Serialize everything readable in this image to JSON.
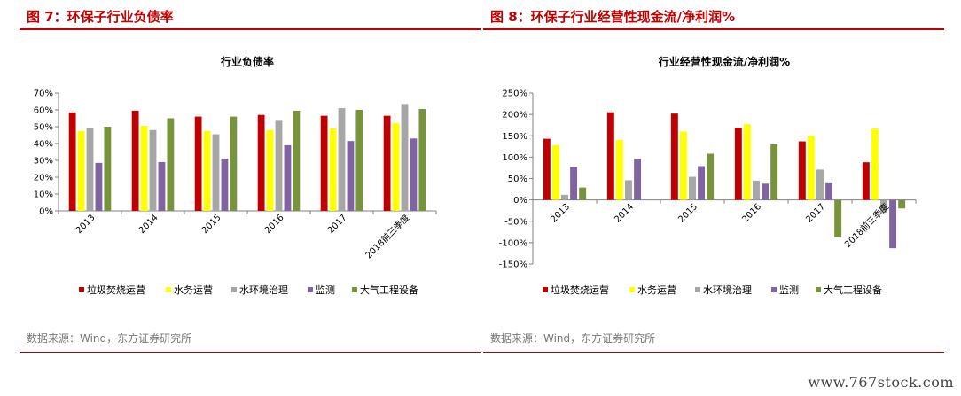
{
  "figures": [
    {
      "title": "图 7：环保子行业负债率",
      "source": "数据来源：Wind，东方证券研究所"
    },
    {
      "title": "图 8：环保子行业经营性现金流/净利润%",
      "source": "数据来源：Wind，东方证券研究所"
    }
  ],
  "watermark": "www.767stock.com",
  "colors": {
    "垃圾焚烧运营": "#c00000",
    "水务运营": "#ffff00",
    "水环境治理": "#a6a6a6",
    "监测": "#8064a2",
    "大气工程设备": "#77933c",
    "title_red": "#c00000"
  },
  "chart_data": [
    {
      "type": "bar",
      "title": "行业负债率",
      "categories": [
        "2013",
        "2014",
        "2015",
        "2016",
        "2017",
        "2018前三季度"
      ],
      "ylim": [
        0,
        70
      ],
      "yticks": [
        0,
        10,
        20,
        30,
        40,
        50,
        60,
        70
      ],
      "ytick_labels": [
        "0%",
        "10%",
        "20%",
        "30%",
        "40%",
        "50%",
        "60%",
        "70%"
      ],
      "grid": false,
      "legend_position": "bottom",
      "series": [
        {
          "name": "垃圾焚烧运营",
          "values": [
            58.5,
            59.5,
            56,
            57,
            56.5,
            56.5
          ]
        },
        {
          "name": "水务运营",
          "values": [
            47.5,
            50.5,
            47.5,
            48,
            49,
            52
          ]
        },
        {
          "name": "水环境治理",
          "values": [
            49.5,
            48,
            45.5,
            53.5,
            61,
            63.5
          ]
        },
        {
          "name": "监测",
          "values": [
            28.5,
            29,
            31,
            39,
            41.5,
            43
          ]
        },
        {
          "name": "大气工程设备",
          "values": [
            50,
            55,
            56,
            59.5,
            60,
            60.5
          ]
        }
      ]
    },
    {
      "type": "bar",
      "title": "行业经营性现金流/净利润%",
      "categories": [
        "2013",
        "2014",
        "2015",
        "2016",
        "2017",
        "2018前三季度"
      ],
      "ylim": [
        -150,
        250
      ],
      "yticks": [
        -150,
        -100,
        -50,
        0,
        50,
        100,
        150,
        200,
        250
      ],
      "ytick_labels": [
        "-150%",
        "-100%",
        "-50%",
        "0%",
        "50%",
        "100%",
        "150%",
        "200%",
        "250%"
      ],
      "grid": false,
      "legend_position": "bottom",
      "series": [
        {
          "name": "垃圾焚烧运营",
          "values": [
            143,
            205,
            202,
            169,
            137,
            88
          ]
        },
        {
          "name": "水务运营",
          "values": [
            128,
            140,
            160,
            177,
            150,
            167
          ]
        },
        {
          "name": "水环境治理",
          "values": [
            12,
            46,
            54,
            45,
            71,
            -30
          ]
        },
        {
          "name": "监测",
          "values": [
            77,
            96,
            79,
            38,
            39,
            -113
          ]
        },
        {
          "name": "大气工程设备",
          "values": [
            29,
            null,
            108,
            130,
            -88,
            -20
          ]
        }
      ]
    }
  ]
}
